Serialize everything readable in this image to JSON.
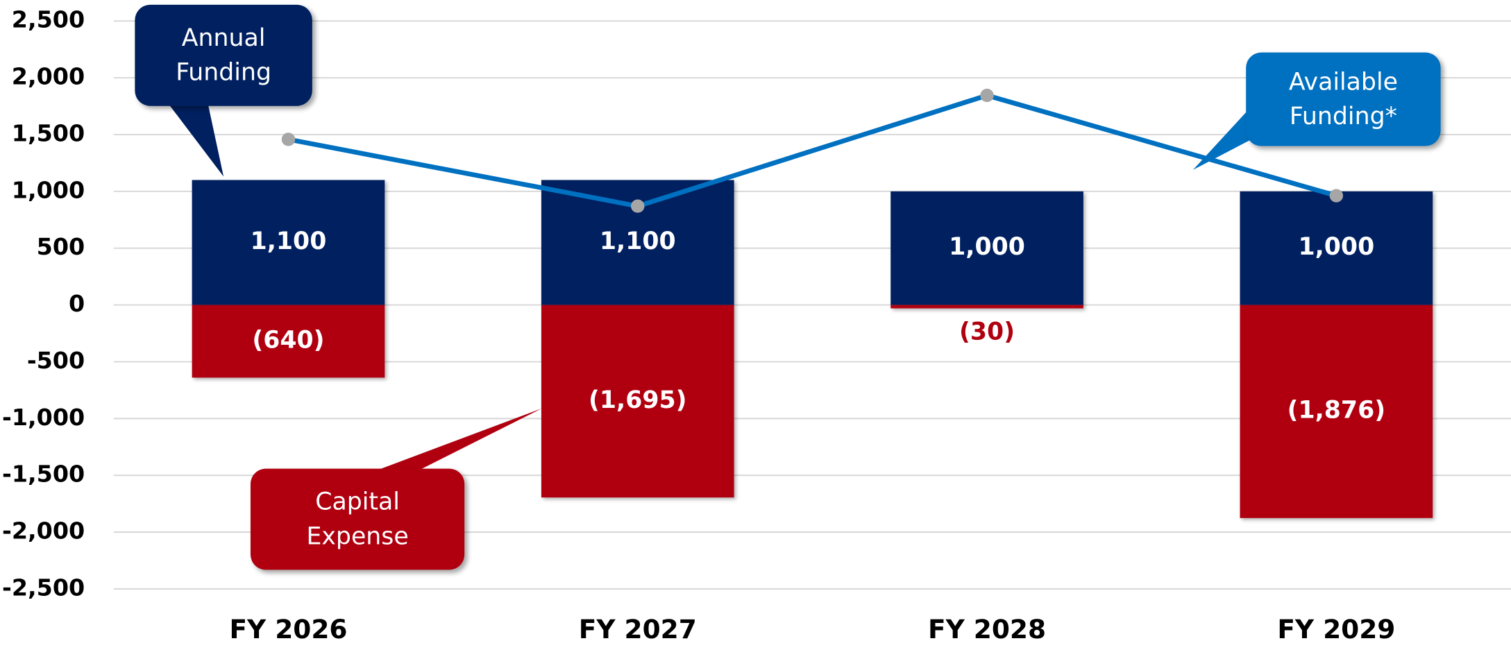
{
  "chart_data": {
    "type": "bar",
    "categories": [
      "FY 2026",
      "FY 2027",
      "FY 2028",
      "FY 2029"
    ],
    "series": [
      {
        "name": "Annual Funding",
        "color": "#002060",
        "values": [
          1100,
          1100,
          1000,
          1000
        ],
        "value_labels": [
          "1,100",
          "1,100",
          "1,000",
          "1,000"
        ]
      },
      {
        "name": "Capital Expense",
        "color": "#b00010",
        "values": [
          -640,
          -1695,
          -30,
          -1876
        ],
        "value_labels": [
          "(640)",
          "(1,695)",
          "(30)",
          "(1,876)"
        ]
      },
      {
        "name": "Available Funding*",
        "type": "line",
        "color": "#0070c0",
        "marker_color": "#a6a6a6",
        "values": [
          1458,
          870,
          1845,
          962
        ]
      }
    ],
    "ylim": [
      -2500,
      2500
    ],
    "yticks": [
      {
        "value": 2500,
        "label": "2,500"
      },
      {
        "value": 2000,
        "label": "2,000"
      },
      {
        "value": 1500,
        "label": "1,500"
      },
      {
        "value": 1000,
        "label": "1,000"
      },
      500,
      0,
      -500,
      {
        "value": -1000,
        "label": "-1,000"
      },
      {
        "value": -1500,
        "label": "-1,500"
      },
      {
        "value": -2000,
        "label": "-2,000"
      },
      {
        "value": -2500,
        "label": "-2,500"
      }
    ],
    "grid": true
  }
}
